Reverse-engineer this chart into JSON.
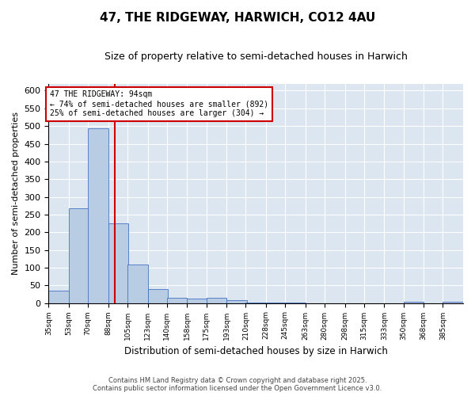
{
  "title": "47, THE RIDGEWAY, HARWICH, CO12 4AU",
  "subtitle": "Size of property relative to semi-detached houses in Harwich",
  "xlabel": "Distribution of semi-detached houses by size in Harwich",
  "ylabel": "Number of semi-detached properties",
  "annotation_text_line1": "47 THE RIDGEWAY: 94sqm",
  "annotation_text_line2": "← 74% of semi-detached houses are smaller (892)",
  "annotation_text_line3": "25% of semi-detached houses are larger (304) →",
  "bins": [
    35,
    53,
    70,
    88,
    105,
    123,
    140,
    158,
    175,
    193,
    210,
    228,
    245,
    263,
    280,
    298,
    315,
    333,
    350,
    368,
    385
  ],
  "counts": [
    34,
    268,
    493,
    224,
    109,
    40,
    15,
    13,
    14,
    7,
    1,
    1,
    1,
    0,
    0,
    0,
    0,
    0,
    3,
    0,
    4
  ],
  "bar_color": "#b8cce4",
  "bar_edge_color": "#4472c4",
  "vline_color": "#cc0000",
  "vline_x": 94,
  "annotation_box_color": "#cc0000",
  "background_color": "#dce6f1",
  "ylim": [
    0,
    620
  ],
  "yticks": [
    0,
    50,
    100,
    150,
    200,
    250,
    300,
    350,
    400,
    450,
    500,
    550,
    600
  ],
  "footer_line1": "Contains HM Land Registry data © Crown copyright and database right 2025.",
  "footer_line2": "Contains public sector information licensed under the Open Government Licence v3.0."
}
